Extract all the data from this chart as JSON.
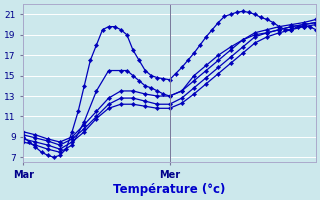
{
  "background_color": "#cce8ec",
  "grid_color": "#b8d8dc",
  "line_color": "#0000bb",
  "marker_color": "#0000bb",
  "xlabel": "Température (°c)",
  "ylabel_ticks": [
    7,
    9,
    11,
    13,
    15,
    17,
    19,
    21
  ],
  "xlim": [
    0,
    48
  ],
  "ylim": [
    6.5,
    22.0
  ],
  "mar_x": 0,
  "mer_x": 24,
  "series": [
    {
      "x": [
        0,
        1,
        2,
        3,
        4,
        5,
        6,
        7,
        8,
        9,
        10,
        11,
        12,
        13,
        14,
        15,
        16,
        17,
        18,
        19,
        20,
        21,
        22,
        23,
        24,
        25,
        26,
        27,
        28,
        29,
        30,
        31,
        32,
        33,
        34,
        35,
        36,
        37,
        38,
        39,
        40,
        41,
        42,
        43,
        44,
        45,
        46,
        47,
        48
      ],
      "y": [
        9.0,
        8.5,
        8.0,
        7.5,
        7.2,
        7.0,
        7.2,
        7.8,
        9.5,
        11.5,
        14.0,
        16.5,
        18.0,
        19.5,
        19.8,
        19.8,
        19.5,
        19.0,
        17.5,
        16.5,
        15.5,
        15.0,
        14.8,
        14.7,
        14.6,
        15.2,
        15.8,
        16.5,
        17.2,
        18.0,
        18.8,
        19.5,
        20.2,
        20.8,
        21.0,
        21.2,
        21.3,
        21.2,
        21.0,
        20.7,
        20.5,
        20.2,
        19.8,
        19.5,
        19.5,
        19.8,
        19.8,
        19.8,
        19.5
      ]
    },
    {
      "x": [
        0,
        2,
        4,
        6,
        8,
        10,
        12,
        14,
        16,
        18,
        20,
        22,
        24,
        26,
        28,
        30,
        32,
        34,
        36,
        38,
        40,
        42,
        44,
        46,
        48
      ],
      "y": [
        9.5,
        9.2,
        8.8,
        8.5,
        9.0,
        10.2,
        11.5,
        12.8,
        13.5,
        13.5,
        13.2,
        13.0,
        13.0,
        13.5,
        14.5,
        15.5,
        16.5,
        17.5,
        18.5,
        19.2,
        19.5,
        19.8,
        20.0,
        20.2,
        20.5
      ]
    },
    {
      "x": [
        0,
        2,
        4,
        6,
        8,
        10,
        12,
        14,
        16,
        18,
        20,
        22,
        24,
        26,
        28,
        30,
        32,
        34,
        36,
        38,
        40,
        42,
        44,
        46,
        48
      ],
      "y": [
        9.2,
        8.9,
        8.6,
        8.2,
        8.8,
        9.8,
        11.0,
        12.2,
        12.8,
        12.8,
        12.5,
        12.2,
        12.2,
        12.8,
        13.8,
        14.8,
        15.8,
        16.8,
        17.8,
        18.8,
        19.2,
        19.5,
        19.8,
        20.0,
        20.2
      ]
    },
    {
      "x": [
        0,
        2,
        4,
        6,
        8,
        10,
        12,
        14,
        16,
        18,
        20,
        22,
        24,
        26,
        28,
        30,
        32,
        34,
        36,
        38,
        40,
        42,
        44,
        46,
        48
      ],
      "y": [
        8.8,
        8.5,
        8.2,
        7.8,
        8.5,
        9.5,
        10.8,
        11.8,
        12.2,
        12.2,
        12.0,
        11.8,
        11.8,
        12.3,
        13.2,
        14.2,
        15.2,
        16.2,
        17.2,
        18.2,
        18.8,
        19.2,
        19.5,
        19.8,
        20.0
      ]
    },
    {
      "x": [
        0,
        2,
        4,
        6,
        8,
        10,
        12,
        14,
        16,
        17,
        18,
        19,
        20,
        21,
        22,
        23,
        24,
        26,
        28,
        30,
        32,
        34,
        36,
        38,
        40,
        42,
        44,
        46,
        48
      ],
      "y": [
        8.5,
        8.2,
        7.8,
        7.5,
        8.2,
        10.5,
        13.5,
        15.5,
        15.5,
        15.5,
        15.0,
        14.5,
        14.0,
        13.8,
        13.5,
        13.2,
        13.0,
        13.5,
        15.0,
        16.0,
        17.0,
        17.8,
        18.5,
        19.0,
        19.2,
        19.5,
        19.8,
        20.0,
        20.2
      ]
    }
  ]
}
